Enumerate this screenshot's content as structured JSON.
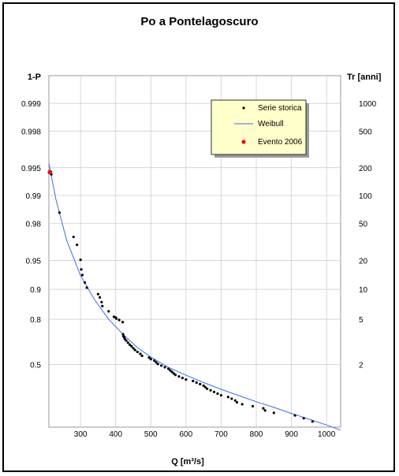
{
  "chart_data": {
    "type": "scatter",
    "title": "Po a Pontelagoscuro",
    "xlabel": "Q [m³/s]",
    "ylabel_left": "1-P",
    "ylabel_right": "Tr [anni]",
    "xlim": [
      210,
      1040
    ],
    "x_ticks": [
      300,
      400,
      500,
      600,
      700,
      800,
      900,
      1000
    ],
    "y_scale": "gumbel reduced variate",
    "y_ticks_left": [
      "0.999",
      "0.998",
      "0.995",
      "0.99",
      "0.98",
      "0.95",
      "0.9",
      "0.8",
      "0.5"
    ],
    "y_ticks_right": [
      "1000",
      "500",
      "200",
      "100",
      "50",
      "20",
      "10",
      "5",
      "2"
    ],
    "grid": true,
    "legend_position": "top-right",
    "legend": [
      "Serie storica",
      "Weibull",
      "Evento 2006"
    ],
    "colors": {
      "serie": "#000000",
      "weibull": "#3a6ee8",
      "evento": "#e0101c",
      "legend_bg": "#ffffcc",
      "grid": "#c8c8c8"
    },
    "series": [
      {
        "name": "Serie storica",
        "x": [
          217,
          240,
          280,
          290,
          300,
          302,
          305,
          312,
          318,
          350,
          355,
          360,
          362,
          380,
          395,
          400,
          402,
          410,
          420,
          421,
          422,
          424,
          426,
          430,
          435,
          440,
          445,
          450,
          455,
          462,
          470,
          475,
          495,
          500,
          510,
          515,
          520,
          530,
          540,
          550,
          555,
          560,
          565,
          570,
          580,
          590,
          600,
          620,
          630,
          640,
          650,
          655,
          660,
          670,
          680,
          690,
          700,
          720,
          730,
          740,
          745,
          760,
          790,
          820,
          825,
          850,
          910,
          935,
          960
        ],
        "y": [
          0.9941,
          0.9847,
          0.972,
          0.966,
          0.951,
          0.938,
          0.929,
          0.915,
          0.904,
          0.888,
          0.879,
          0.865,
          0.852,
          0.833,
          0.811,
          0.808,
          0.803,
          0.797,
          0.787,
          0.723,
          0.712,
          0.705,
          0.694,
          0.684,
          0.67,
          0.656,
          0.645,
          0.631,
          0.618,
          0.604,
          0.589,
          0.573,
          0.559,
          0.546,
          0.534,
          0.519,
          0.505,
          0.491,
          0.477,
          0.463,
          0.449,
          0.435,
          0.421,
          0.407,
          0.393,
          0.379,
          0.365,
          0.351,
          0.337,
          0.323,
          0.309,
          0.295,
          0.281,
          0.267,
          0.253,
          0.238,
          0.224,
          0.21,
          0.196,
          0.182,
          0.168,
          0.154,
          0.14,
          0.126,
          0.112,
          0.098,
          0.084,
          0.07,
          0.056
        ]
      },
      {
        "name": "Weibull",
        "x": [
          210,
          230,
          260,
          300,
          340,
          380,
          420,
          460,
          500,
          550,
          600,
          650,
          700,
          750,
          800,
          850,
          900,
          950,
          1000,
          1040
        ],
        "y": [
          0.9955,
          0.989,
          0.97,
          0.928,
          0.872,
          0.8,
          0.725,
          0.64,
          0.562,
          0.475,
          0.405,
          0.337,
          0.276,
          0.222,
          0.172,
          0.132,
          0.095,
          0.066,
          0.043,
          0.028
        ]
      },
      {
        "name": "Evento 2006",
        "x": [
          213
        ],
        "y": [
          0.9944
        ]
      }
    ]
  }
}
